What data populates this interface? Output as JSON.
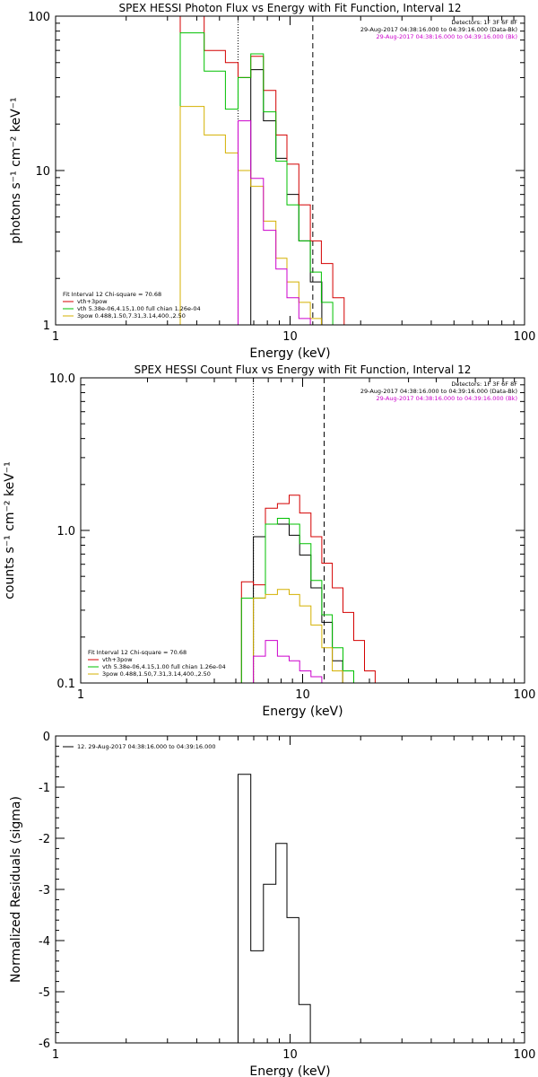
{
  "chart_data": [
    {
      "type": "line",
      "title": "SPEX HESSI Photon Flux vs Energy with Fit Function, Interval 12",
      "xlabel": "Energy (keV)",
      "ylabel": "photons s⁻¹ cm⁻² keV⁻¹",
      "x_scale": "log",
      "y_scale": "log",
      "xlim": [
        1,
        100
      ],
      "ylim": [
        1,
        100
      ],
      "x_ticks": [
        "1",
        "10",
        "100"
      ],
      "y_ticks": [
        "1",
        "10",
        "100"
      ],
      "markers": [
        {
          "x": 6.0,
          "style": "dotted"
        },
        {
          "x": 12.5,
          "style": "dashed"
        }
      ],
      "header": [
        {
          "text": "Detectors: 1F 3F 6F 8F",
          "color": "#000000"
        },
        {
          "text": "29-Aug-2017 04:38:16.000 to 04:39:16.000 (Data-Bk)",
          "color": "#000000"
        },
        {
          "text": "29-Aug-2017 04:38:16.000 to 04:39:16.000 (Bk)",
          "color": "#cc00cc"
        }
      ],
      "legend_placement": "bottom-left",
      "legend": [
        {
          "text": "Fit Interval 12   Chi-square = 70.68",
          "color": "#000000"
        },
        {
          "text": "vth+3pow",
          "color": "#d40000"
        },
        {
          "text": "vth 5.38e-06,4.15,1.00  full chian 1.26e-04",
          "color": "#00c000"
        },
        {
          "text": "3pow 0.488,1.50,7.31,3.14,400.,2.50",
          "color": "#d4b000"
        }
      ],
      "series": [
        {
          "color": "#000000",
          "x": [
            6.0,
            6.8,
            7.7,
            8.7,
            9.7,
            10.9,
            12.2
          ],
          "y": [
            1,
            45,
            21,
            12,
            7,
            3.5,
            1.9
          ]
        },
        {
          "color": "#d40000",
          "x": [
            3.4,
            4.3,
            5.3,
            6.0,
            6.8,
            7.7,
            8.7,
            9.7,
            10.9,
            12.2,
            13.6,
            15.2,
            17.0
          ],
          "y": [
            100,
            60,
            50,
            40,
            55,
            33,
            17,
            11,
            6,
            3.5,
            2.5,
            1.5,
            1
          ]
        },
        {
          "color": "#00c000",
          "x": [
            3.4,
            4.3,
            5.3,
            6.0,
            6.8,
            7.7,
            8.7,
            9.7,
            10.9,
            12.2,
            13.6,
            15.2
          ],
          "y": [
            78,
            44,
            25,
            40,
            57,
            24,
            11.5,
            6,
            3.5,
            2.2,
            1.4,
            1
          ]
        },
        {
          "color": "#d4b000",
          "x": [
            3.4,
            4.3,
            5.3,
            6.0,
            6.8,
            7.7,
            8.7,
            9.7,
            10.9,
            12.2,
            13.6
          ],
          "y": [
            26,
            17,
            13,
            10,
            7.9,
            4.7,
            2.7,
            1.9,
            1.4,
            1.1,
            1
          ]
        },
        {
          "color": "#cc00cc",
          "x": [
            6.0,
            6.8,
            7.7,
            8.7,
            9.7,
            10.9,
            12.2
          ],
          "y": [
            21,
            8.9,
            4.1,
            2.3,
            1.5,
            1.1,
            1
          ]
        }
      ]
    },
    {
      "type": "line",
      "title": "SPEX HESSI Count Flux vs Energy with Fit Function, Interval 12",
      "xlabel": "Energy (keV)",
      "ylabel": "counts s⁻¹ cm⁻² keV⁻¹",
      "x_scale": "log",
      "y_scale": "log",
      "xlim": [
        1,
        100
      ],
      "ylim": [
        0.1,
        10
      ],
      "x_ticks": [
        "1",
        "10",
        "100"
      ],
      "y_ticks": [
        "0.1",
        "1.0",
        "10.0"
      ],
      "markers": [
        {
          "x": 6.0,
          "style": "dotted"
        },
        {
          "x": 12.5,
          "style": "dashed"
        }
      ],
      "header": [
        {
          "text": "Detectors: 1F 3F 6F 8F",
          "color": "#000000"
        },
        {
          "text": "29-Aug-2017 04:38:16.000 to 04:39:16.000 (Data-Bk)",
          "color": "#000000"
        },
        {
          "text": "29-Aug-2017 04:38:16.000 to 04:39:16.000 (Bk)",
          "color": "#cc00cc"
        }
      ],
      "legend_placement": "bottom-left",
      "legend": [
        {
          "text": "Fit Interval 12   Chi-square = 70.68",
          "color": "#000000"
        },
        {
          "text": "vth+3pow",
          "color": "#d40000"
        },
        {
          "text": "vth 5.38e-06,4.15,1.00  full chian 1.26e-04",
          "color": "#00c000"
        },
        {
          "text": "3pow 0.488,1.50,7.31,3.14,400.,2.50",
          "color": "#d4b000"
        }
      ],
      "series": [
        {
          "color": "#000000",
          "x": [
            5.3,
            6.0,
            6.8,
            7.7,
            8.7,
            9.7,
            10.9,
            12.2,
            13.6
          ],
          "y": [
            0.1,
            0.91,
            1.1,
            1.1,
            0.93,
            0.69,
            0.42,
            0.25,
            0.14
          ]
        },
        {
          "color": "#d40000",
          "x": [
            5.3,
            6.0,
            6.8,
            7.7,
            8.7,
            9.7,
            10.9,
            12.2,
            13.6,
            15.2,
            17.0,
            19.0
          ],
          "y": [
            0.46,
            0.44,
            1.4,
            1.5,
            1.7,
            1.3,
            0.91,
            0.61,
            0.42,
            0.29,
            0.19,
            0.12
          ]
        },
        {
          "color": "#00c000",
          "x": [
            5.3,
            6.0,
            6.8,
            7.7,
            8.7,
            9.7,
            10.9,
            12.2,
            13.6,
            15.2,
            17.0
          ],
          "y": [
            0.36,
            0.36,
            1.1,
            1.2,
            1.1,
            0.82,
            0.47,
            0.28,
            0.17,
            0.12,
            0.1
          ]
        },
        {
          "color": "#d4b000",
          "x": [
            6.0,
            6.8,
            7.7,
            8.7,
            9.7,
            10.9,
            12.2,
            13.6
          ],
          "y": [
            0.36,
            0.38,
            0.41,
            0.38,
            0.32,
            0.24,
            0.17,
            0.12
          ]
        },
        {
          "color": "#cc00cc",
          "x": [
            6.0,
            6.8,
            7.7,
            8.7,
            9.7,
            10.9,
            12.2,
            13.6
          ],
          "y": [
            0.15,
            0.19,
            0.15,
            0.14,
            0.12,
            0.11,
            0.1,
            0.1
          ]
        }
      ]
    },
    {
      "type": "line",
      "title": "",
      "xlabel": "Energy (keV)",
      "ylabel": "Normalized Residuals (sigma)",
      "x_scale": "log",
      "y_scale": "linear",
      "xlim": [
        1,
        100
      ],
      "ylim": [
        -6,
        0
      ],
      "x_ticks": [
        "1",
        "10",
        "100"
      ],
      "y_ticks": [
        "-6",
        "-5",
        "-4",
        "-3",
        "-2",
        "-1",
        "0"
      ],
      "legend_placement": "top-left",
      "legend": [
        {
          "text": "12. 29-Aug-2017 04:38:16.000 to 04:39:16.000",
          "color": "#000000"
        }
      ],
      "series": [
        {
          "color": "#000000",
          "x": [
            6.0,
            6.8,
            7.7,
            8.7,
            9.7,
            10.9,
            12.2
          ],
          "y": [
            -0.75,
            -4.2,
            -2.9,
            -2.1,
            -3.55,
            -5.25,
            -6
          ]
        }
      ]
    }
  ]
}
